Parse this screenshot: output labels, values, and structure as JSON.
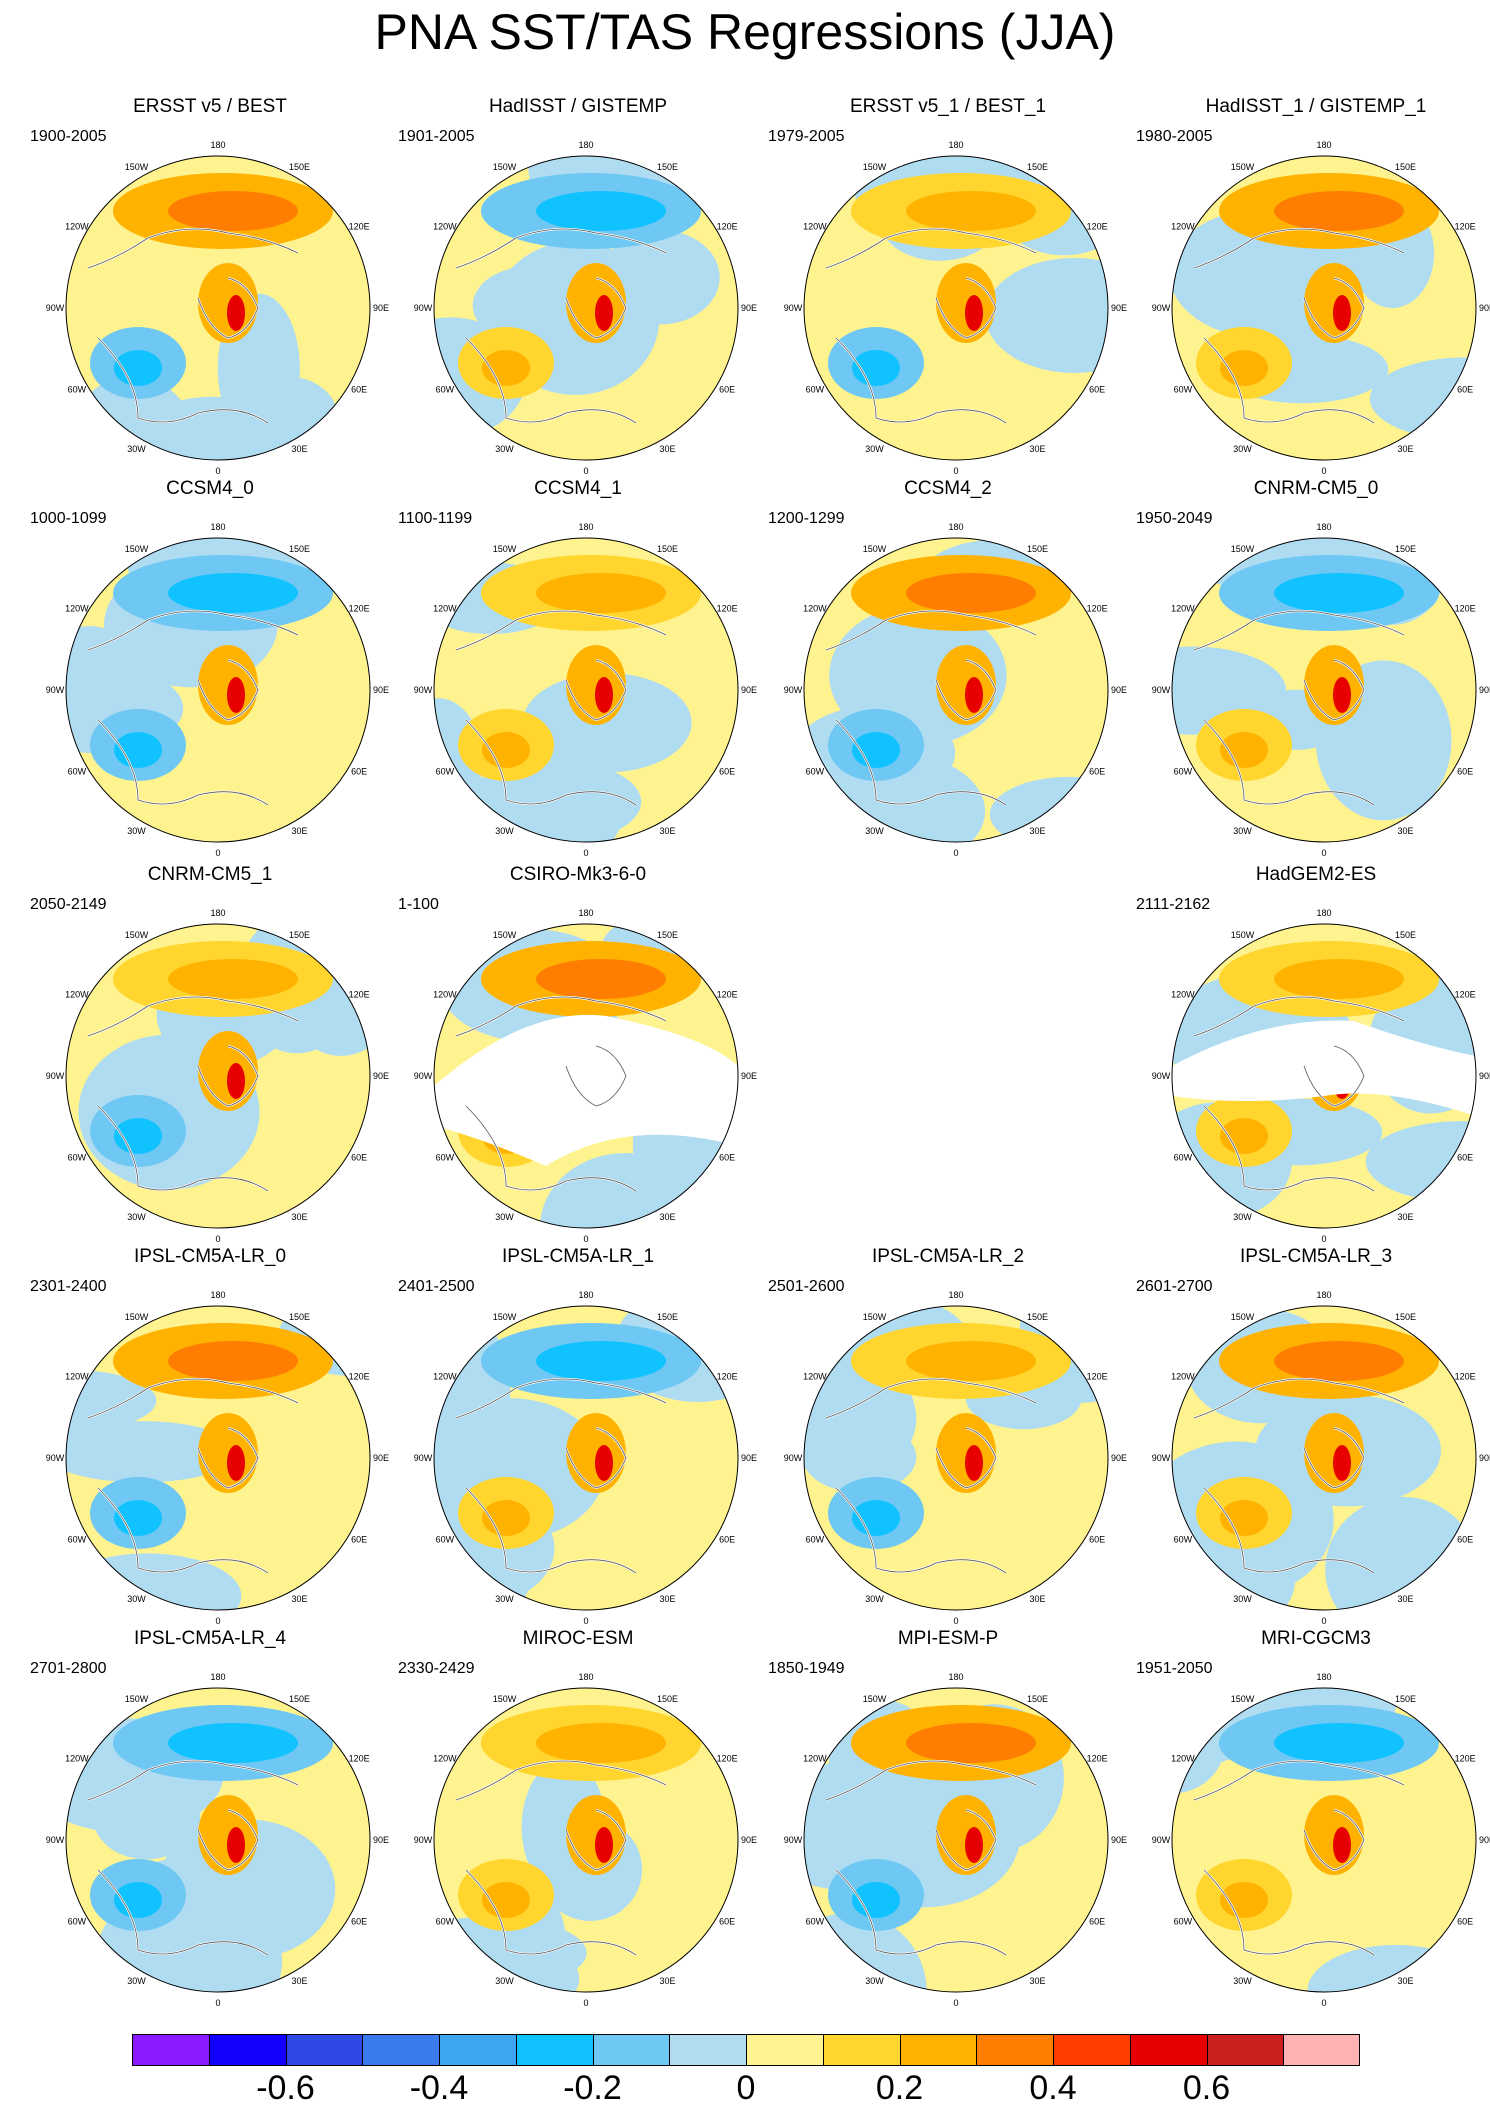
{
  "title": "PNA SST/TAS Regressions (JJA)",
  "lon_labels": [
    "180",
    "150E",
    "120E",
    "90E",
    "60E",
    "30E",
    "0",
    "30W",
    "60W",
    "90W",
    "120W",
    "150W"
  ],
  "colorbar": {
    "colors": [
      "#8c1aff",
      "#1400ff",
      "#2e49e6",
      "#3a7cf0",
      "#3da6f0",
      "#10c2ff",
      "#6ec8f3",
      "#b0dcf2",
      "#fff38f",
      "#ffd52e",
      "#ffb300",
      "#ff7d00",
      "#ff3d00",
      "#e60000",
      "#cc1f1f",
      "#ffb3b3"
    ],
    "tick_labels": [
      "-0.6",
      "-0.4",
      "-0.2",
      "0",
      "0.2",
      "0.4",
      "0.6"
    ],
    "tick_values": [
      -0.6,
      -0.4,
      -0.2,
      0,
      0.2,
      0.4,
      0.6
    ],
    "value_range": [
      -0.8,
      0.8
    ]
  },
  "panels": [
    {
      "title": "ERSST v5 / BEST",
      "years": "1900-2005",
      "data_coverage": "full"
    },
    {
      "title": "HadISST / GISTEMP",
      "years": "1901-2005",
      "data_coverage": "full"
    },
    {
      "title": "ERSST v5_1 / BEST_1",
      "years": "1979-2005",
      "data_coverage": "full"
    },
    {
      "title": "HadISST_1 / GISTEMP_1",
      "years": "1980-2005",
      "data_coverage": "full"
    },
    {
      "title": "CCSM4_0",
      "years": "1000-1099",
      "data_coverage": "full"
    },
    {
      "title": "CCSM4_1",
      "years": "1100-1199",
      "data_coverage": "full"
    },
    {
      "title": "CCSM4_2",
      "years": "1200-1299",
      "data_coverage": "full"
    },
    {
      "title": "CNRM-CM5_0",
      "years": "1950-2049",
      "data_coverage": "full"
    },
    {
      "title": "CNRM-CM5_1",
      "years": "2050-2149",
      "data_coverage": "full"
    },
    {
      "title": "CSIRO-Mk3-6-0",
      "years": "1-100",
      "data_coverage": "sst-only"
    },
    {
      "title": "",
      "years": "",
      "data_coverage": "none"
    },
    {
      "title": "HadGEM2-ES",
      "years": "2111-2162",
      "data_coverage": "partial"
    },
    {
      "title": "IPSL-CM5A-LR_0",
      "years": "2301-2400",
      "data_coverage": "full"
    },
    {
      "title": "IPSL-CM5A-LR_1",
      "years": "2401-2500",
      "data_coverage": "full"
    },
    {
      "title": "IPSL-CM5A-LR_2",
      "years": "2501-2600",
      "data_coverage": "full"
    },
    {
      "title": "IPSL-CM5A-LR_3",
      "years": "2601-2700",
      "data_coverage": "full"
    },
    {
      "title": "IPSL-CM5A-LR_4",
      "years": "2701-2800",
      "data_coverage": "full"
    },
    {
      "title": "MIROC-ESM",
      "years": "2330-2429",
      "data_coverage": "full"
    },
    {
      "title": "MPI-ESM-P",
      "years": "1850-1949",
      "data_coverage": "full"
    },
    {
      "title": "MRI-CGCM3",
      "years": "1951-2050",
      "data_coverage": "full"
    }
  ]
}
